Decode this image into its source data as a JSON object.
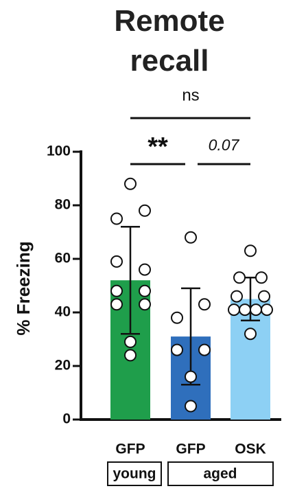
{
  "chart_data": {
    "type": "bar",
    "title": "Remote recall",
    "y_label": "% Freezing",
    "categories": [
      "GFP",
      "GFP",
      "OSK"
    ],
    "groups": [
      {
        "label": "young"
      },
      {
        "label": "aged"
      }
    ],
    "values": [
      52,
      31,
      45
    ],
    "errors": [
      20,
      18,
      8
    ],
    "colors": [
      "#1f9e4b",
      "#2f6fbc",
      "#8dd0f4"
    ],
    "points": [
      [
        88,
        75,
        78,
        59,
        56,
        48,
        48,
        43,
        43,
        29,
        24
      ],
      [
        68,
        38,
        43,
        26,
        26,
        16,
        5
      ],
      [
        63,
        53,
        53,
        46,
        46,
        41,
        41,
        41,
        41,
        32
      ]
    ],
    "annotations": [
      "ns",
      "**",
      "0.07"
    ],
    "ylim": [
      0,
      100
    ],
    "yticks": [
      0,
      20,
      40,
      60,
      80,
      100
    ]
  }
}
